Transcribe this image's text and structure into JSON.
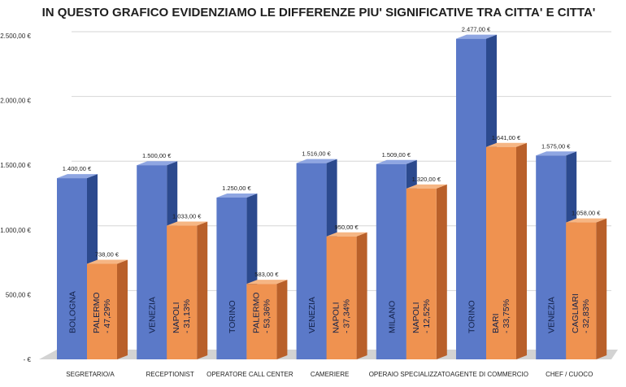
{
  "chart_data": {
    "type": "bar",
    "title": "IN QUESTO GRAFICO EVIDENZIAMO LE DIFFERENZE PIU' SIGNIFICATIVE TRA CITTA' E CITTA'",
    "xlabel": "",
    "ylabel": "",
    "ylim": [
      0,
      2500
    ],
    "yticks": [
      "-  €",
      "500,00 €",
      "1.000,00 €",
      "1.500,00 €",
      "2.000,00 €",
      "2.500,00 €"
    ],
    "grid": true,
    "legend": "none",
    "colors": {
      "blue_front": "#5b79c8",
      "blue_side": "#2c4a8e",
      "blue_top": "#8fa6e2",
      "orange_front": "#ef9250",
      "orange_side": "#b9602a",
      "orange_top": "#f6b684",
      "floor": "#d3d3d3",
      "inner_text": "#13224a"
    },
    "categories": [
      "SEGRETARIO/A",
      "RECEPTIONIST",
      "OPERATORE CALL CENTER",
      "CAMERIERE",
      "OPERAIO SPECIALIZZATO",
      "AGENTE DI COMMERCIO",
      "CHEF / CUOCO"
    ],
    "series": [
      {
        "values": [
          1400,
          1500,
          1250,
          1516,
          1509,
          2477,
          1575
        ],
        "value_labels": [
          "1.400,00 €",
          "1.500,00 €",
          "1.250,00 €",
          "1.516,00 €",
          "1.509,00 €",
          "2.477,00 €",
          "1.575,00 €"
        ],
        "bar_labels": [
          "BOLOGNA",
          "VENEZIA",
          "TORINO",
          "VENEZIA",
          "MILANO",
          "TORINO",
          "VENEZIA"
        ]
      },
      {
        "values": [
          738,
          1033,
          583,
          950,
          1320,
          1641,
          1058
        ],
        "value_labels": [
          "738,00 €",
          "1.033,00 €",
          "583,00 €",
          "950,00 €",
          "1.320,00 €",
          "1.641,00 €",
          "1.058,00 €"
        ],
        "bar_labels": [
          "PALERMO",
          "NAPOLI",
          "PALERMO",
          "NAPOLI",
          "NAPOLI",
          "BARI",
          "CAGLIARI"
        ],
        "diff_labels": [
          "- 47,29%",
          "- 31,13%",
          "- 53,36%",
          "- 37,34%",
          "- 12,52%",
          "- 33,75%",
          "- 32,83%"
        ]
      }
    ]
  }
}
